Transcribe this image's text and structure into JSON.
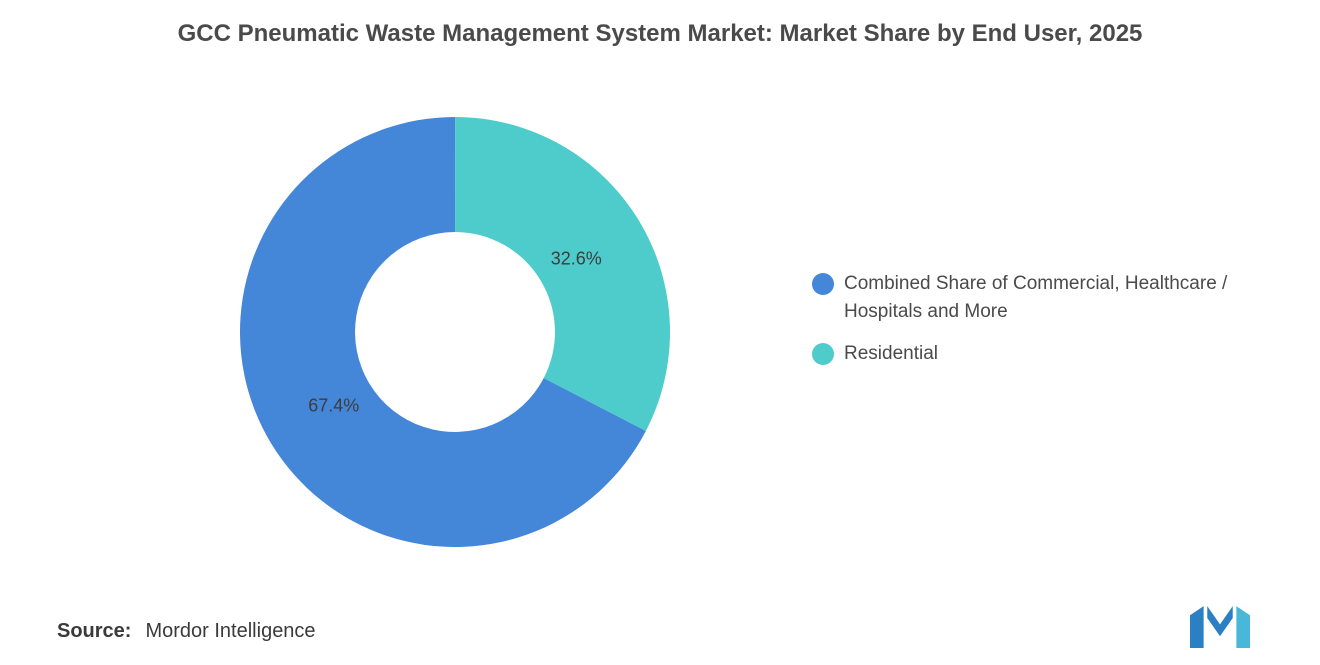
{
  "title": "GCC Pneumatic Waste Management System Market: Market Share by End User, 2025",
  "chart_data": {
    "type": "pie",
    "donut": true,
    "title": "GCC Pneumatic Waste Management System Market: Market Share by End User, 2025",
    "start_angle_deg": 117.4,
    "inner_radius_ratio": 0.465,
    "label_radius_ratio": 0.66,
    "legend_position": "right",
    "slices": [
      {
        "label": "Combined Share of Commercial, Healthcare / Hospitals and More",
        "value": 67.4,
        "display": "67.4%",
        "color": "#4486d8"
      },
      {
        "label": "Residential",
        "value": 32.6,
        "display": "32.6%",
        "color": "#4dcccb"
      }
    ]
  },
  "legend": {
    "items": [
      {
        "label": "Combined Share of Commercial, Healthcare / Hospitals and More",
        "color": "#4486d8"
      },
      {
        "label": "Residential",
        "color": "#4dcccb"
      }
    ]
  },
  "source": {
    "label": "Source:",
    "value": "Mordor Intelligence"
  },
  "logo": {
    "name": "mordor-intelligence-logo"
  }
}
